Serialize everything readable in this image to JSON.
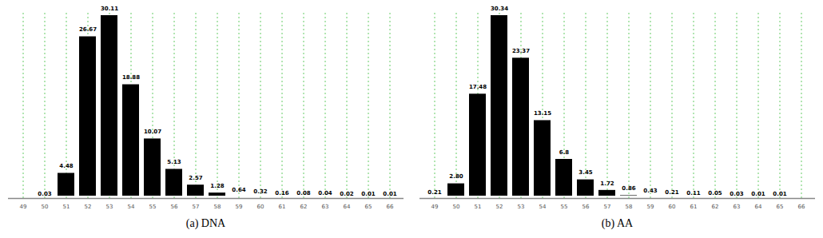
{
  "chart_data": [
    {
      "type": "bar",
      "title": "(a) DNA",
      "categories": [
        49,
        50,
        51,
        52,
        53,
        54,
        55,
        56,
        57,
        58,
        59,
        60,
        61,
        62,
        63,
        64,
        65,
        66
      ],
      "values": [
        null,
        0.03,
        4.48,
        26.67,
        30.11,
        18.88,
        10.07,
        5.13,
        2.57,
        1.28,
        0.64,
        0.32,
        0.16,
        0.08,
        0.04,
        0.02,
        0.01,
        0.01
      ],
      "value_labels": [
        null,
        "0.03",
        "4.48",
        "26.67",
        "30.11",
        "18.88",
        "10.07",
        "5.13",
        "2.57",
        "1.28",
        "0.64",
        "0.32",
        "0.16",
        "0.08",
        "0.04",
        "0.02",
        "0.01",
        "0.01"
      ],
      "color": "#000000",
      "grid": true,
      "data_labels": true,
      "tick_labels": "x"
    },
    {
      "type": "bar",
      "title": "(b) AA",
      "categories": [
        49,
        50,
        51,
        52,
        53,
        54,
        55,
        56,
        57,
        58,
        59,
        60,
        61,
        62,
        63,
        64,
        65,
        66
      ],
      "values": [
        0.21,
        2.8,
        17.48,
        30.34,
        23.37,
        13.15,
        6.8,
        3.45,
        1.72,
        0.86,
        0.43,
        0.21,
        0.11,
        0.05,
        0.03,
        0.01,
        0.01,
        null
      ],
      "value_labels": [
        "0.21",
        "2.80",
        "17.48",
        "30.34",
        "23.37",
        "13.15",
        "6.8",
        "3.45",
        "1.72",
        "0.86",
        "0.43",
        "0.21",
        "0.11",
        "0.05",
        "0.03",
        "0.01",
        "0.01",
        null
      ],
      "color": "#000000",
      "grid": true,
      "data_labels": true,
      "tick_labels": "x"
    }
  ]
}
